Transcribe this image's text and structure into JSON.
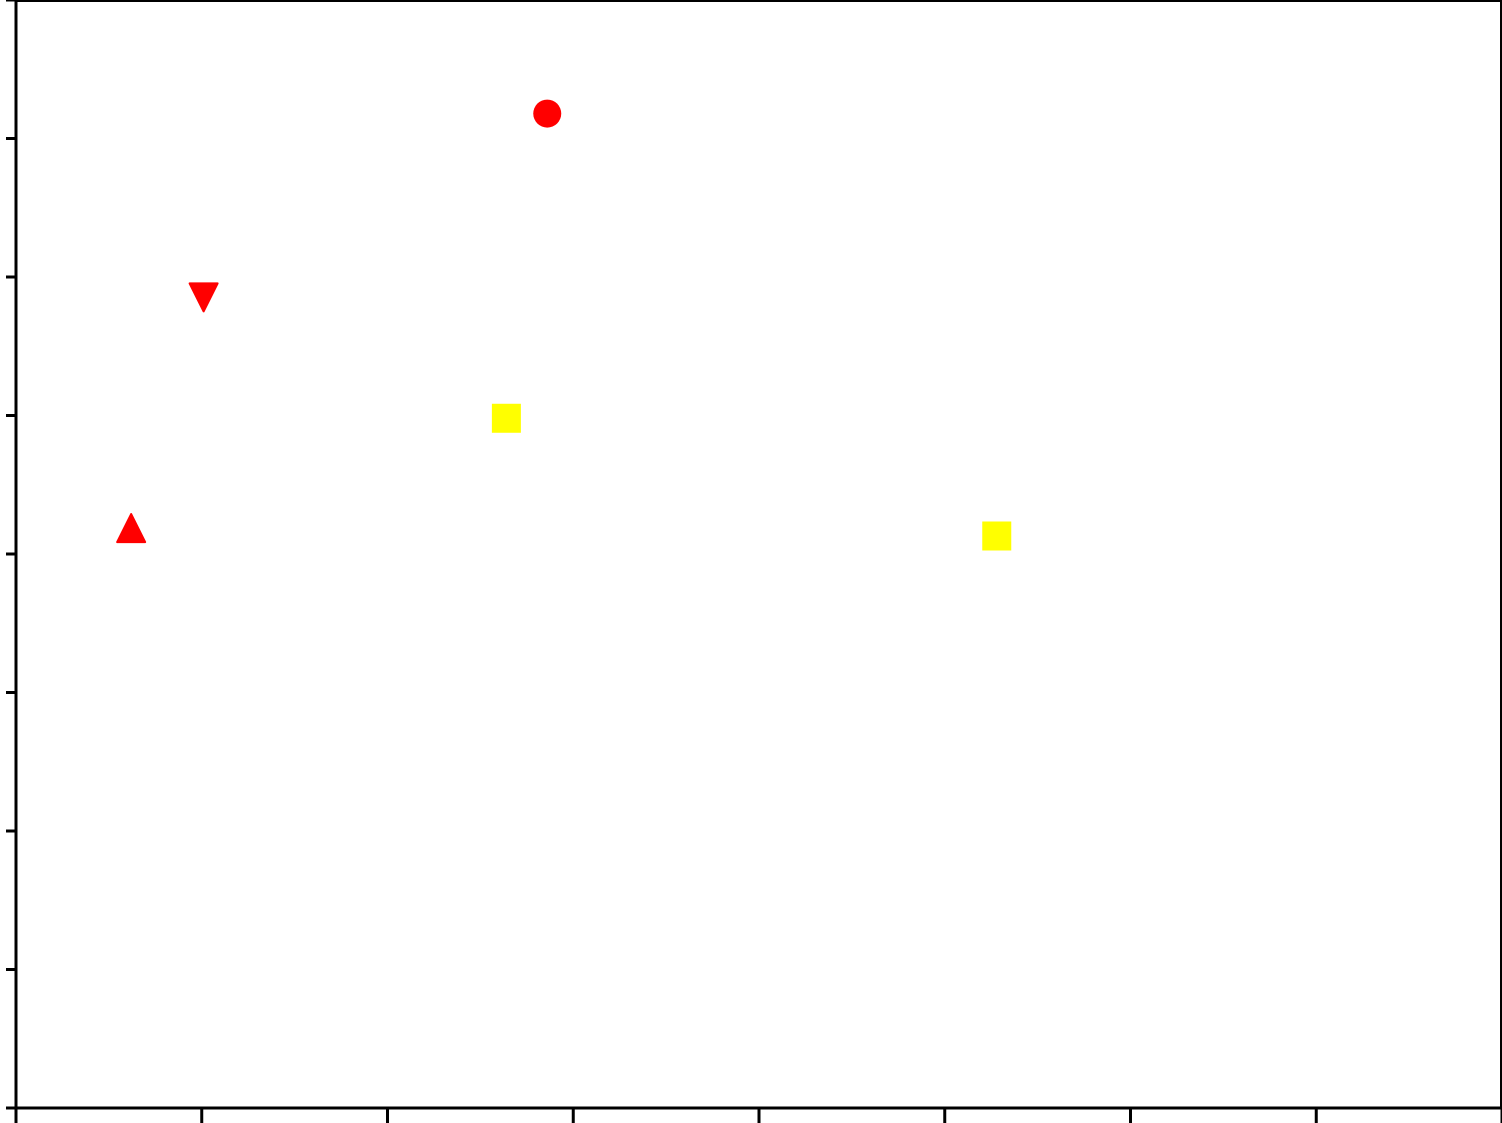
{
  "chart_data": {
    "type": "scatter",
    "title": "",
    "xlabel": "",
    "ylabel": "",
    "xlim": [
      0,
      8
    ],
    "ylim": [
      0,
      8
    ],
    "x_ticks": [
      0,
      1,
      2,
      3,
      4,
      5,
      6,
      7,
      8
    ],
    "y_ticks": [
      0,
      1,
      2,
      3,
      4,
      5,
      6,
      7,
      8
    ],
    "tick_labels_shown": false,
    "grid": false,
    "legend": "none",
    "colors": {
      "axis": "#000000",
      "red": "#ff0000",
      "yellow": "#ffff00",
      "background": "#ffffff"
    },
    "points": [
      {
        "x": 0.62,
        "y": 4.18,
        "marker": "triangle-up",
        "color": "#ff0000"
      },
      {
        "x": 1.01,
        "y": 5.86,
        "marker": "triangle-down",
        "color": "#ff0000"
      },
      {
        "x": 2.86,
        "y": 7.18,
        "marker": "circle",
        "color": "#ff0000"
      },
      {
        "x": 2.64,
        "y": 4.98,
        "marker": "square",
        "color": "#ffff00"
      },
      {
        "x": 5.28,
        "y": 4.13,
        "marker": "square",
        "color": "#ffff00"
      }
    ]
  }
}
